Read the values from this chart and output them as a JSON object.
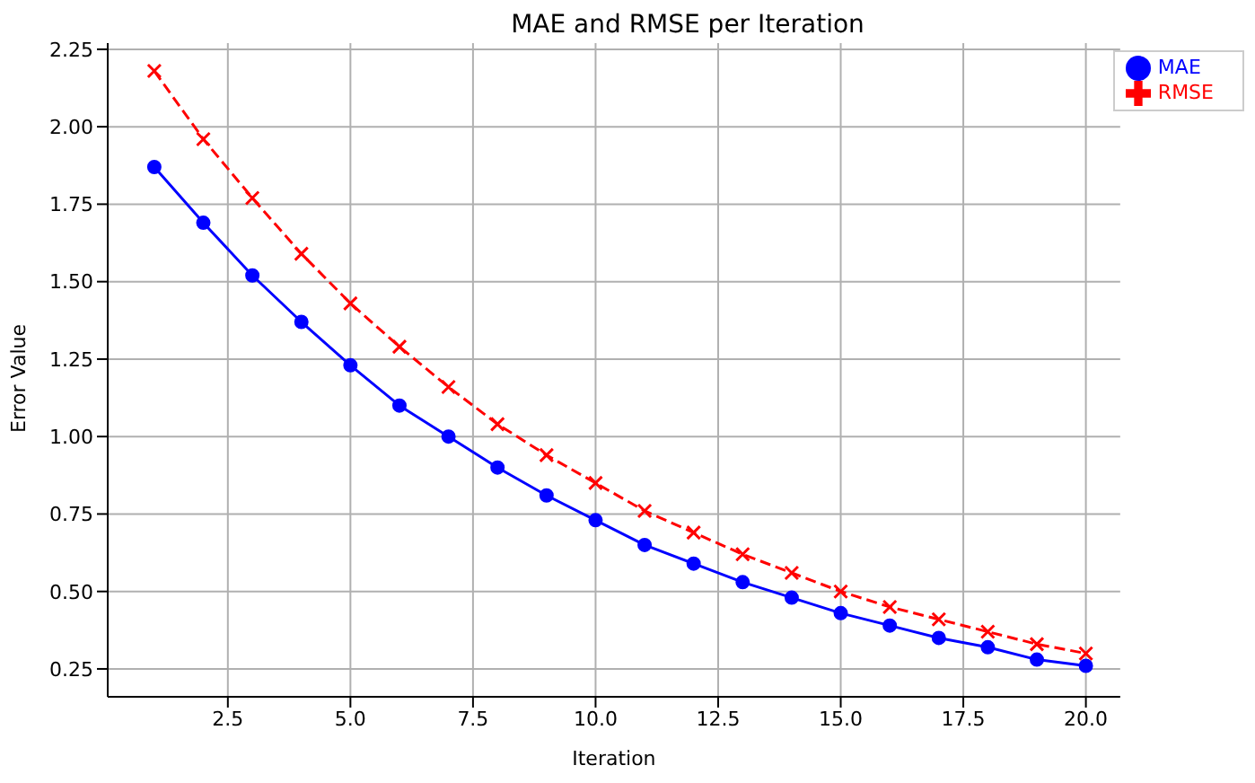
{
  "chart_data": {
    "type": "line",
    "title": "MAE and RMSE per Iteration",
    "xlabel": "Iteration",
    "ylabel": "Error Value",
    "x": [
      1,
      2,
      3,
      4,
      5,
      6,
      7,
      8,
      9,
      10,
      11,
      12,
      13,
      14,
      15,
      16,
      17,
      18,
      19,
      20
    ],
    "series": [
      {
        "name": "MAE",
        "color": "#0000ff",
        "marker": "circle",
        "line_style": "solid",
        "values": [
          1.87,
          1.69,
          1.52,
          1.37,
          1.23,
          1.1,
          1.0,
          0.9,
          0.81,
          0.73,
          0.65,
          0.59,
          0.53,
          0.48,
          0.43,
          0.39,
          0.35,
          0.32,
          0.28,
          0.26
        ]
      },
      {
        "name": "RMSE",
        "color": "#ff0000",
        "marker": "cross",
        "line_style": "dashed",
        "values": [
          2.18,
          1.96,
          1.77,
          1.59,
          1.43,
          1.29,
          1.16,
          1.04,
          0.94,
          0.85,
          0.76,
          0.69,
          0.62,
          0.56,
          0.5,
          0.45,
          0.41,
          0.37,
          0.33,
          0.3
        ]
      }
    ],
    "xlim": [
      0.05,
      20.7
    ],
    "xticks": [
      {
        "value": 2.5,
        "label": "2.5"
      },
      {
        "value": 5,
        "label": "5.0"
      },
      {
        "value": 7.5,
        "label": "7.5"
      },
      {
        "value": 10,
        "label": "10.0"
      },
      {
        "value": 12.5,
        "label": "12.5"
      },
      {
        "value": 15,
        "label": "15.0"
      },
      {
        "value": 17.5,
        "label": "17.5"
      },
      {
        "value": 20,
        "label": "20.0"
      }
    ],
    "ylim": [
      0.16,
      2.27
    ],
    "yticks": [
      {
        "value": 0.25,
        "label": "0.25"
      },
      {
        "value": 0.5,
        "label": "0.50"
      },
      {
        "value": 0.75,
        "label": "0.75"
      },
      {
        "value": 1,
        "label": "1.00"
      },
      {
        "value": 1.25,
        "label": "1.25"
      },
      {
        "value": 1.5,
        "label": "1.50"
      },
      {
        "value": 1.75,
        "label": "1.75"
      },
      {
        "value": 2,
        "label": "2.00"
      },
      {
        "value": 2.25,
        "label": "2.25"
      }
    ],
    "grid": true,
    "legend": "top right"
  }
}
